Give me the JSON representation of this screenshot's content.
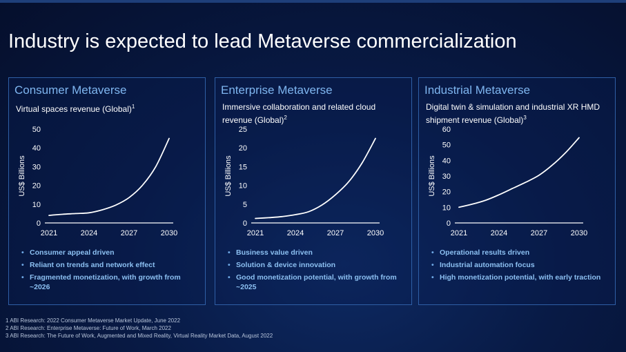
{
  "title": "Industry is expected to lead Metaverse commercialization",
  "panels": [
    {
      "title": "Consumer Metaverse",
      "subtitle": "Virtual spaces revenue (Global)",
      "footnote_ref": "1",
      "bullets": [
        "Consumer appeal driven",
        "Reliant on trends and network effect",
        "Fragmented monetization, with growth from ~2026"
      ]
    },
    {
      "title": "Enterprise Metaverse",
      "subtitle": "Immersive collaboration and related cloud revenue (Global)",
      "footnote_ref": "2",
      "bullets": [
        "Business value driven",
        "Solution & device innovation",
        "Good monetization potential, with growth from ~2025"
      ]
    },
    {
      "title": "Industrial Metaverse",
      "subtitle": "Digital twin & simulation and industrial XR HMD shipment revenue (Global)",
      "footnote_ref": "3",
      "bullets": [
        "Operational results driven",
        "Industrial automation focus",
        "High monetization potential, with early traction"
      ]
    }
  ],
  "chart_data": [
    {
      "type": "line",
      "title": "Consumer Metaverse",
      "subtitle": "Virtual spaces revenue (Global)",
      "xlabel": "",
      "ylabel": "US$ Billions",
      "xlim": [
        2021,
        2030
      ],
      "ylim": [
        0,
        50
      ],
      "xticks": [
        2021,
        2024,
        2027,
        2030
      ],
      "yticks": [
        0,
        10,
        20,
        30,
        40,
        50
      ],
      "x": [
        2021,
        2022,
        2023,
        2024,
        2025,
        2026,
        2027,
        2028,
        2029,
        2030
      ],
      "series": [
        {
          "name": "Virtual spaces revenue",
          "values": [
            4,
            4.6,
            5,
            5.4,
            7,
            9.5,
            13.5,
            20,
            30,
            45
          ]
        }
      ],
      "grid": false
    },
    {
      "type": "line",
      "title": "Enterprise Metaverse",
      "subtitle": "Immersive collaboration and related cloud revenue (Global)",
      "xlabel": "",
      "ylabel": "US$ Billions",
      "xlim": [
        2021,
        2030
      ],
      "ylim": [
        0,
        25
      ],
      "xticks": [
        2021,
        2024,
        2027,
        2030
      ],
      "yticks": [
        0,
        5,
        10,
        15,
        20,
        25
      ],
      "x": [
        2021,
        2022,
        2023,
        2024,
        2025,
        2026,
        2027,
        2028,
        2029,
        2030
      ],
      "series": [
        {
          "name": "Immersive collaboration and cloud revenue",
          "values": [
            1.2,
            1.4,
            1.7,
            2.2,
            3,
            4.8,
            7.5,
            11,
            16,
            22.5
          ]
        }
      ],
      "grid": false
    },
    {
      "type": "line",
      "title": "Industrial Metaverse",
      "subtitle": "Digital twin & simulation and industrial XR HMD shipment revenue (Global)",
      "xlabel": "",
      "ylabel": "US$ Billions",
      "xlim": [
        2021,
        2030
      ],
      "ylim": [
        0,
        60
      ],
      "xticks": [
        2021,
        2024,
        2027,
        2030
      ],
      "yticks": [
        0,
        10,
        20,
        30,
        40,
        50,
        60
      ],
      "x": [
        2021,
        2022,
        2023,
        2024,
        2025,
        2026,
        2027,
        2028,
        2029,
        2030
      ],
      "series": [
        {
          "name": "Digital twin, simulation and industrial XR revenue",
          "values": [
            10,
            12,
            14.5,
            18,
            22,
            26,
            30.5,
            37,
            45,
            54.5
          ]
        }
      ],
      "grid": false
    }
  ],
  "footnotes": [
    "1 ABI Research: 2022 Consumer Metaverse Market Update, June 2022",
    "2 ABI Research: Enterprise Metaverse: Future of Work, March 2022",
    "3 ABI Research: The Future of Work, Augmented and Mixed Reality, Virtual Reality Market Data, August 2022"
  ],
  "colors": {
    "background": "#081a45",
    "panel_border": "#2f5fa6",
    "panel_title": "#7fb6f0",
    "bullet_text": "#8cc0f2",
    "line": "#ffffff"
  }
}
